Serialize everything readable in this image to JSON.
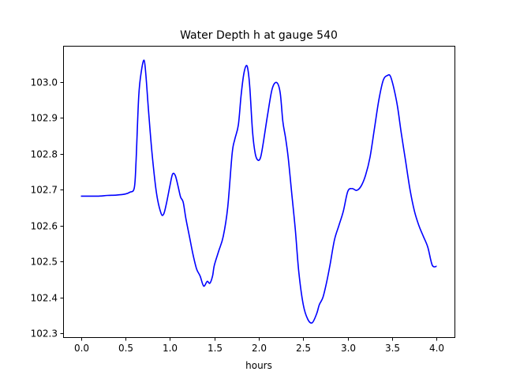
{
  "chart_data": {
    "type": "line",
    "title": "Water Depth h at gauge 540",
    "xlabel": "hours",
    "ylabel": "",
    "xlim": [
      -0.2,
      4.2
    ],
    "ylim": [
      102.29,
      103.1
    ],
    "xticks": [
      0.0,
      0.5,
      1.0,
      1.5,
      2.0,
      2.5,
      3.0,
      3.5,
      4.0
    ],
    "xtick_labels": [
      "0.0",
      "0.5",
      "1.0",
      "1.5",
      "2.0",
      "2.5",
      "3.0",
      "3.5",
      "4.0"
    ],
    "yticks": [
      102.3,
      102.4,
      102.5,
      102.6,
      102.7,
      102.8,
      102.9,
      103.0
    ],
    "ytick_labels": [
      "102.3",
      "102.4",
      "102.5",
      "102.6",
      "102.7",
      "102.8",
      "102.9",
      "103.0"
    ],
    "grid": false,
    "series": [
      {
        "color": "#0000ff",
        "x": [
          0.0,
          0.1,
          0.2,
          0.3,
          0.4,
          0.5,
          0.55,
          0.6,
          0.62,
          0.65,
          0.68,
          0.71,
          0.73,
          0.76,
          0.8,
          0.85,
          0.9,
          0.93,
          0.96,
          1.0,
          1.03,
          1.06,
          1.09,
          1.12,
          1.15,
          1.18,
          1.22,
          1.26,
          1.3,
          1.34,
          1.38,
          1.42,
          1.45,
          1.48,
          1.5,
          1.55,
          1.6,
          1.65,
          1.7,
          1.73,
          1.77,
          1.8,
          1.83,
          1.86,
          1.88,
          1.9,
          1.93,
          1.96,
          1.99,
          2.02,
          2.05,
          2.1,
          2.15,
          2.2,
          2.24,
          2.27,
          2.3,
          2.33,
          2.37,
          2.41,
          2.45,
          2.5,
          2.55,
          2.6,
          2.65,
          2.68,
          2.72,
          2.76,
          2.8,
          2.85,
          2.9,
          2.95,
          3.0,
          3.05,
          3.1,
          3.15,
          3.2,
          3.25,
          3.3,
          3.35,
          3.4,
          3.45,
          3.48,
          3.52,
          3.56,
          3.6,
          3.65,
          3.7,
          3.75,
          3.8,
          3.85,
          3.9,
          3.95,
          4.0
        ],
        "y": [
          102.682,
          102.682,
          102.682,
          102.684,
          102.685,
          102.688,
          102.693,
          102.705,
          102.78,
          102.96,
          103.03,
          103.06,
          103.02,
          102.92,
          102.8,
          102.69,
          102.635,
          102.632,
          102.66,
          102.71,
          102.743,
          102.74,
          102.712,
          102.68,
          102.665,
          102.62,
          102.57,
          102.52,
          102.48,
          102.46,
          102.432,
          102.445,
          102.44,
          102.46,
          102.49,
          102.53,
          102.57,
          102.65,
          102.8,
          102.84,
          102.88,
          102.96,
          103.02,
          103.045,
          103.03,
          102.98,
          102.86,
          102.8,
          102.782,
          102.79,
          102.83,
          102.91,
          102.98,
          102.998,
          102.97,
          102.89,
          102.845,
          102.79,
          102.69,
          102.59,
          102.47,
          102.38,
          102.34,
          102.33,
          102.355,
          102.38,
          102.4,
          102.44,
          102.49,
          102.56,
          102.6,
          102.64,
          102.695,
          102.703,
          102.698,
          102.71,
          102.74,
          102.79,
          102.87,
          102.95,
          103.005,
          103.018,
          103.015,
          102.98,
          102.93,
          102.86,
          102.78,
          102.7,
          102.64,
          102.6,
          102.57,
          102.54,
          102.49,
          102.487
        ]
      }
    ]
  }
}
